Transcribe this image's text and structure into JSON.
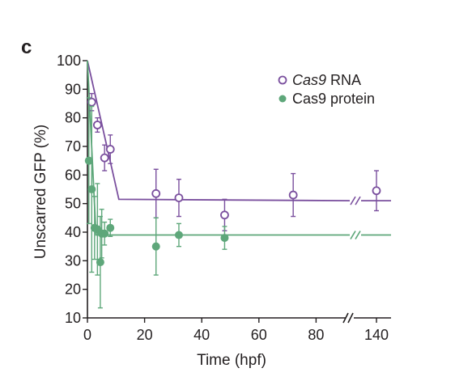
{
  "chart_data": {
    "type": "scatter",
    "panel_label": "c",
    "xlabel": "Time (hpf)",
    "ylabel": "Unscarred GFP (%)",
    "ylim": [
      10,
      100
    ],
    "yticks": [
      10,
      20,
      30,
      40,
      50,
      60,
      70,
      80,
      90,
      100
    ],
    "xticks": [
      0,
      20,
      40,
      60,
      80,
      140
    ],
    "x_axis_break": "between 80 and 140",
    "legend_position": "top-right",
    "grid": false,
    "series": [
      {
        "name": "Cas9 RNA",
        "name_parts": [
          {
            "text": "Cas9",
            "italic": true
          },
          {
            "text": " RNA",
            "italic": false
          }
        ],
        "marker": "open-circle",
        "color": "#7a4f9e",
        "points": [
          {
            "x": 1.5,
            "y": 85.5,
            "err": 3
          },
          {
            "x": 3.5,
            "y": 77.5,
            "err": 2.5
          },
          {
            "x": 6,
            "y": 66,
            "err": 4.5
          },
          {
            "x": 8,
            "y": 69,
            "err": 5
          },
          {
            "x": 24,
            "y": 53.5,
            "err": 8.5
          },
          {
            "x": 32,
            "y": 52,
            "err": 6.5
          },
          {
            "x": 48,
            "y": 46,
            "err": 5.5
          },
          {
            "x": 72,
            "y": 53,
            "err": 7.5
          },
          {
            "x": 140,
            "y": 54.5,
            "err": 7
          }
        ],
        "fit_line": [
          [
            0,
            100
          ],
          [
            11,
            51.5
          ],
          [
            140,
            51
          ]
        ]
      },
      {
        "name": "Cas9 protein",
        "marker": "filled-circle",
        "color": "#5ea77a",
        "points": [
          {
            "x": 0.5,
            "y": 65,
            "err": 22
          },
          {
            "x": 1.5,
            "y": 55,
            "err": 29
          },
          {
            "x": 2.5,
            "y": 41.5,
            "err": 11
          },
          {
            "x": 3.5,
            "y": 41,
            "err": 16
          },
          {
            "x": 4.5,
            "y": 29.5,
            "err": 16
          },
          {
            "x": 5,
            "y": 39.5,
            "err": 8.5
          },
          {
            "x": 6,
            "y": 39.5,
            "err": 4
          },
          {
            "x": 8,
            "y": 41.5,
            "err": 3
          },
          {
            "x": 24,
            "y": 35,
            "err": 10
          },
          {
            "x": 32,
            "y": 39,
            "err": 4
          },
          {
            "x": 48,
            "y": 38,
            "err": 4
          }
        ],
        "fit_line": [
          [
            0,
            100
          ],
          [
            3,
            39
          ],
          [
            140,
            39
          ]
        ]
      }
    ]
  }
}
